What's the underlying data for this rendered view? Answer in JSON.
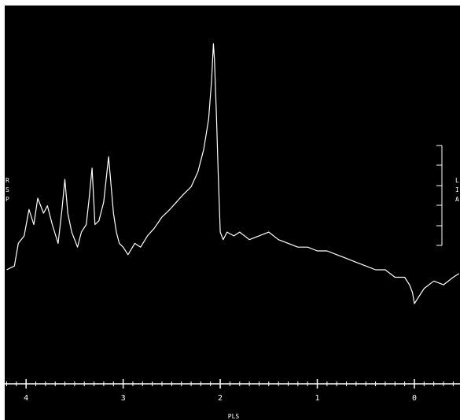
{
  "colors": {
    "background": "#000000",
    "trace": "#ffffff",
    "frame": "#ffffff"
  },
  "left_labels": [
    "R",
    "S",
    "P"
  ],
  "right_labels": [
    "L",
    "I",
    "A"
  ],
  "chart_data": {
    "type": "line",
    "title": "",
    "xlabel": "PLS",
    "ylabel": "",
    "x_reversed": true,
    "xlim": [
      4.22,
      -0.47
    ],
    "ylim": [
      -0.08,
      0.86
    ],
    "xticks": [
      4,
      3,
      2,
      1,
      0
    ],
    "xtick_labels": [
      "4",
      "3",
      "2",
      "1",
      "0"
    ],
    "grid": false,
    "series": [
      {
        "x": [
          4.2,
          4.12,
          4.08,
          4.02,
          3.97,
          3.92,
          3.88,
          3.82,
          3.78,
          3.73,
          3.67,
          3.63,
          3.6,
          3.57,
          3.53,
          3.47,
          3.43,
          3.38,
          3.35,
          3.32,
          3.29,
          3.25,
          3.2,
          3.15,
          3.1,
          3.07,
          3.04,
          3.0,
          2.95,
          2.88,
          2.82,
          2.75,
          2.68,
          2.6,
          2.52,
          2.45,
          2.38,
          2.3,
          2.23,
          2.17,
          2.12,
          2.09,
          2.07,
          2.06,
          2.04,
          2.02,
          2.0,
          1.97,
          1.93,
          1.86,
          1.8,
          1.7,
          1.6,
          1.5,
          1.4,
          1.3,
          1.2,
          1.1,
          1.0,
          0.9,
          0.8,
          0.7,
          0.6,
          0.5,
          0.4,
          0.3,
          0.2,
          0.1,
          0.05,
          0.02,
          0.0,
          -0.05,
          -0.1,
          -0.2,
          -0.3,
          -0.4,
          -0.46
        ],
        "y": [
          0.2,
          0.21,
          0.27,
          0.29,
          0.36,
          0.32,
          0.39,
          0.35,
          0.37,
          0.32,
          0.27,
          0.36,
          0.44,
          0.35,
          0.3,
          0.26,
          0.3,
          0.32,
          0.39,
          0.47,
          0.32,
          0.33,
          0.38,
          0.5,
          0.35,
          0.3,
          0.27,
          0.26,
          0.24,
          0.27,
          0.26,
          0.29,
          0.31,
          0.34,
          0.36,
          0.38,
          0.4,
          0.42,
          0.46,
          0.52,
          0.6,
          0.7,
          0.8,
          0.76,
          0.62,
          0.45,
          0.3,
          0.28,
          0.3,
          0.29,
          0.3,
          0.28,
          0.29,
          0.3,
          0.28,
          0.27,
          0.26,
          0.26,
          0.25,
          0.25,
          0.24,
          0.23,
          0.22,
          0.21,
          0.2,
          0.2,
          0.18,
          0.18,
          0.16,
          0.14,
          0.11,
          0.13,
          0.15,
          0.17,
          0.16,
          0.18,
          0.19
        ]
      }
    ]
  }
}
